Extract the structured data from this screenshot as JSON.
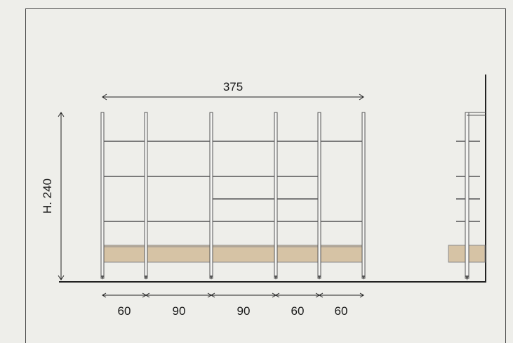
{
  "drawing": {
    "total_width_label": "375",
    "height_label": "H. 240",
    "bay_labels": [
      "60",
      "90",
      "90",
      "60",
      "60"
    ]
  },
  "colors": {
    "background": "#eeeeea",
    "line": "#4a4a4a",
    "shelf": "#7a7a7a",
    "drawer_fill": "#d6c3a5"
  }
}
